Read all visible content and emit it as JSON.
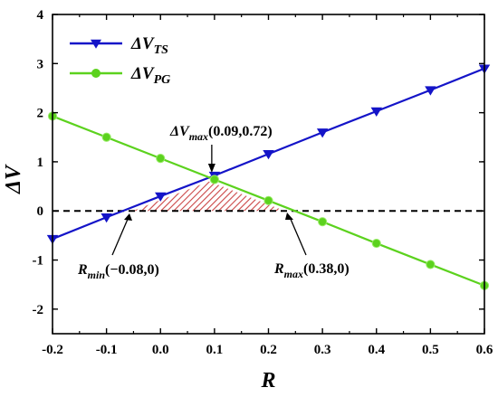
{
  "chart_data": {
    "type": "line",
    "title": "",
    "xlabel": "R",
    "ylabel": "ΔV",
    "xlim": [
      -0.2,
      0.6
    ],
    "ylim": [
      -2.5,
      4
    ],
    "x_ticks": [
      -0.2,
      -0.1,
      0.0,
      0.1,
      0.2,
      0.3,
      0.4,
      0.5,
      0.6
    ],
    "y_ticks": [
      -2,
      -1,
      0,
      1,
      2,
      3,
      4
    ],
    "x_tick_labels": [
      "-0.2",
      "-0.1",
      "0.0",
      "0.1",
      "0.2",
      "0.3",
      "0.4",
      "0.5",
      "0.6"
    ],
    "y_tick_labels": [
      "-2",
      "-1",
      "0",
      "1",
      "2",
      "3",
      "4"
    ],
    "grid": false,
    "legend_position": "top-left",
    "series": [
      {
        "name": "ΔV",
        "subscript": "TS",
        "color": "#1414c8",
        "marker": "triangle-down",
        "x": [
          -0.2,
          -0.1,
          0.0,
          0.1,
          0.2,
          0.3,
          0.4,
          0.5,
          0.6
        ],
        "y": [
          -0.57,
          -0.13,
          0.3,
          0.72,
          1.16,
          1.6,
          2.03,
          2.46,
          2.9
        ]
      },
      {
        "name": "ΔV",
        "subscript": "PG",
        "color": "#5cd21e",
        "marker": "circle",
        "x": [
          -0.2,
          -0.1,
          0.0,
          0.1,
          0.2,
          0.3,
          0.4,
          0.5,
          0.6
        ],
        "y": [
          1.93,
          1.5,
          1.07,
          0.64,
          0.21,
          -0.22,
          -0.66,
          -1.09,
          -1.52
        ]
      }
    ],
    "reference_line": {
      "y": 0,
      "style": "dashed",
      "color": "#000000"
    },
    "shaded_region": {
      "color": "#c83c3c",
      "pattern": "hatched",
      "x_range": [
        -0.05,
        0.23
      ]
    },
    "annotations": [
      {
        "prefix": "ΔV",
        "subscript": "max",
        "text": "(0.09,0.72)",
        "point": [
          0.09,
          0.72
        ]
      },
      {
        "prefix": "R",
        "subscript": "min",
        "text": "(−0.08,0)",
        "point": [
          -0.08,
          0
        ]
      },
      {
        "prefix": "R",
        "subscript": "max",
        "text": "(0.38,0)",
        "point": [
          0.38,
          0
        ]
      }
    ]
  }
}
